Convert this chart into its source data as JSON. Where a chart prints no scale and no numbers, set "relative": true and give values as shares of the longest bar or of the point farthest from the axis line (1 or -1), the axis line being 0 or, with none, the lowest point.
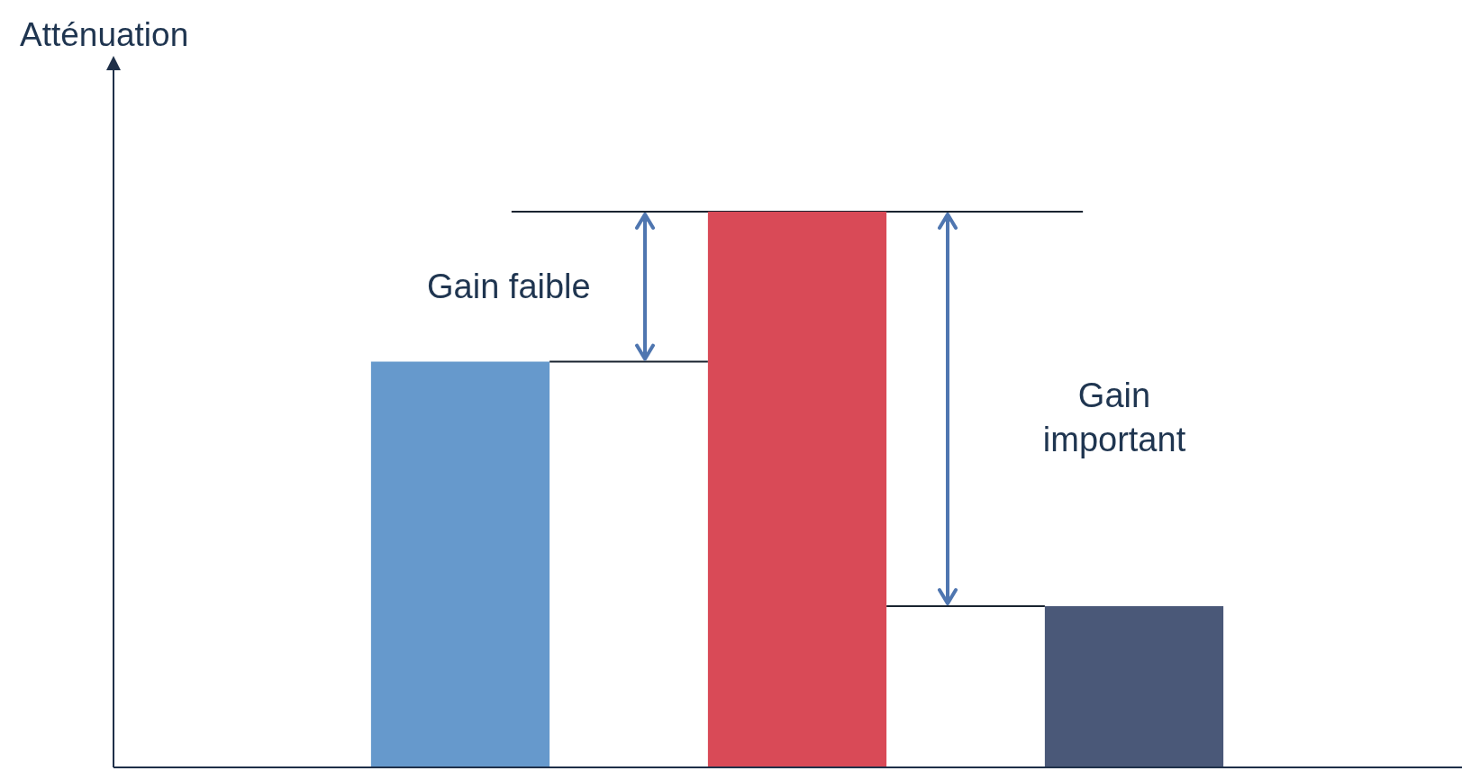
{
  "chart_data": {
    "type": "bar",
    "ylabel": "Atténuation",
    "categories": [
      null,
      null,
      null
    ],
    "relative": true,
    "values": [
      0.73,
      1,
      0.29
    ],
    "colors": [
      "#6699cc",
      "#d94a57",
      "#4a5878"
    ],
    "ref_lines": [
      {
        "axis": "y",
        "value": 1
      },
      {
        "axis": "y",
        "value": 0.73
      },
      {
        "axis": "y",
        "value": 0.29
      }
    ],
    "annotations": [
      "Gain faible",
      "Gain important"
    ]
  }
}
